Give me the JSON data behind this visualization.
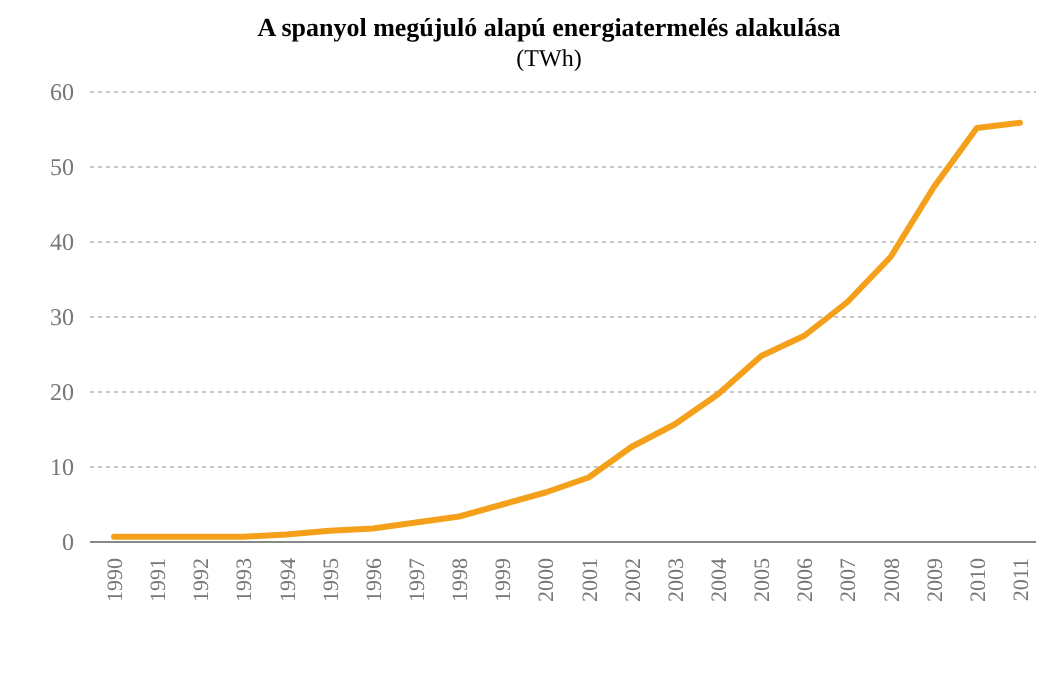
{
  "chart_data": {
    "type": "line",
    "title": "A spanyol megújuló alapú energiatermelés alakulása",
    "subtitle": "(TWh)",
    "categories": [
      "1990",
      "1991",
      "1992",
      "1993",
      "1994",
      "1995",
      "1996",
      "1997",
      "1998",
      "1999",
      "2000",
      "2001",
      "2002",
      "2003",
      "2004",
      "2005",
      "2006",
      "2007",
      "2008",
      "2009",
      "2010",
      "2011"
    ],
    "series": [
      {
        "color": "#f5a01a",
        "values": [
          0.7,
          0.7,
          0.7,
          0.7,
          1.0,
          1.5,
          1.8,
          2.6,
          3.4,
          5.0,
          6.6,
          8.6,
          12.7,
          15.7,
          19.7,
          24.8,
          27.5,
          32.0,
          38.0,
          47.3,
          55.2,
          55.9
        ]
      }
    ],
    "ylim": [
      0,
      60
    ],
    "yticks": [
      0,
      10,
      20,
      30,
      40,
      50,
      60
    ],
    "grid": "y",
    "marker": "none",
    "line_style": "solid"
  }
}
